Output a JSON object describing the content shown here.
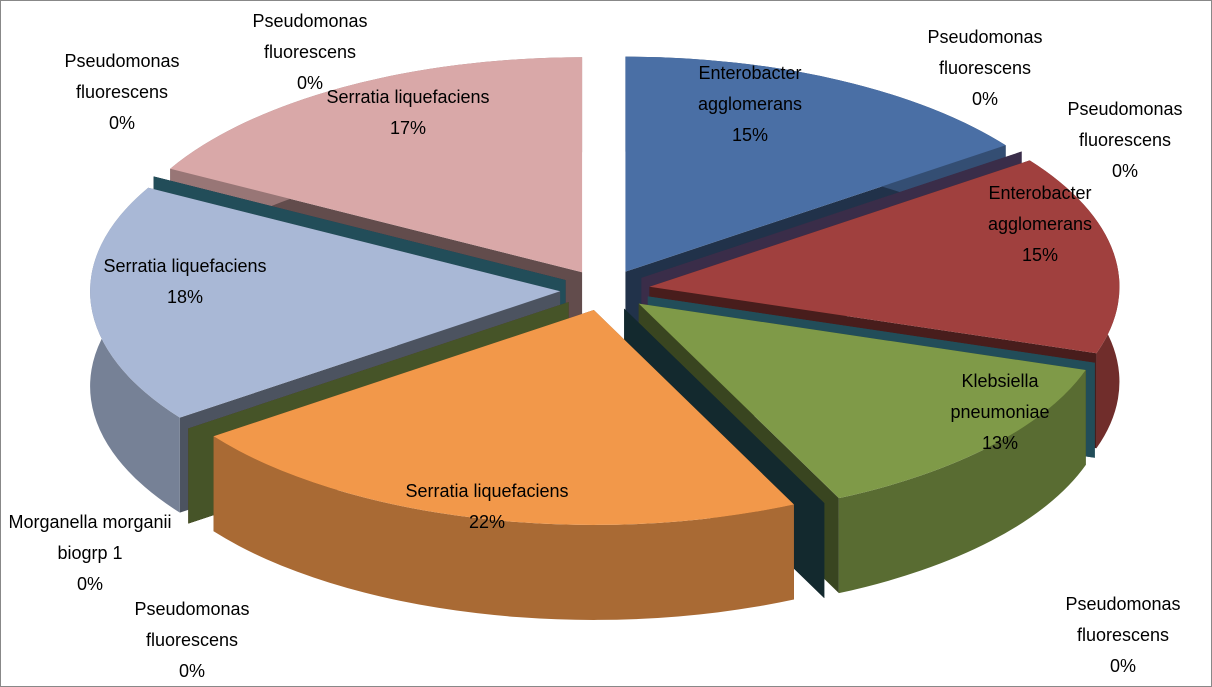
{
  "chart_data": {
    "type": "pie",
    "categories": [
      "Enterobacter agglomerans",
      "Pseudomonas fluorescens",
      "Enterobacter agglomerans",
      "Pseudomonas fluorescens",
      "Klebsiella pneumoniae",
      "Pseudomonas fluorescens",
      "Serratia liquefaciens",
      "Pseudomonas fluorescens",
      "Morganella morganii biogrp 1",
      "Serratia liquefaciens",
      "Pseudomonas fluorescens",
      "Pseudomonas fluorescens",
      "Serratia liquefaciens"
    ],
    "values": [
      15,
      0,
      15,
      0,
      13,
      0,
      22,
      0,
      0,
      18,
      0,
      0,
      17
    ],
    "value_labels": [
      "15%",
      "0%",
      "15%",
      "0%",
      "13%",
      "0%",
      "22%",
      "0%",
      "0%",
      "18%",
      "0%",
      "0%",
      "17%"
    ],
    "colors": [
      "#4a6fa5",
      "#8064a2",
      "#a0403e",
      "#4bacc6",
      "#7f9a48",
      "#2a5a66",
      "#f2984a",
      "#c0504d",
      "#9bbb59",
      "#a9b8d6",
      "#8064a2",
      "#4bacc6",
      "#d9a8a8"
    ]
  }
}
